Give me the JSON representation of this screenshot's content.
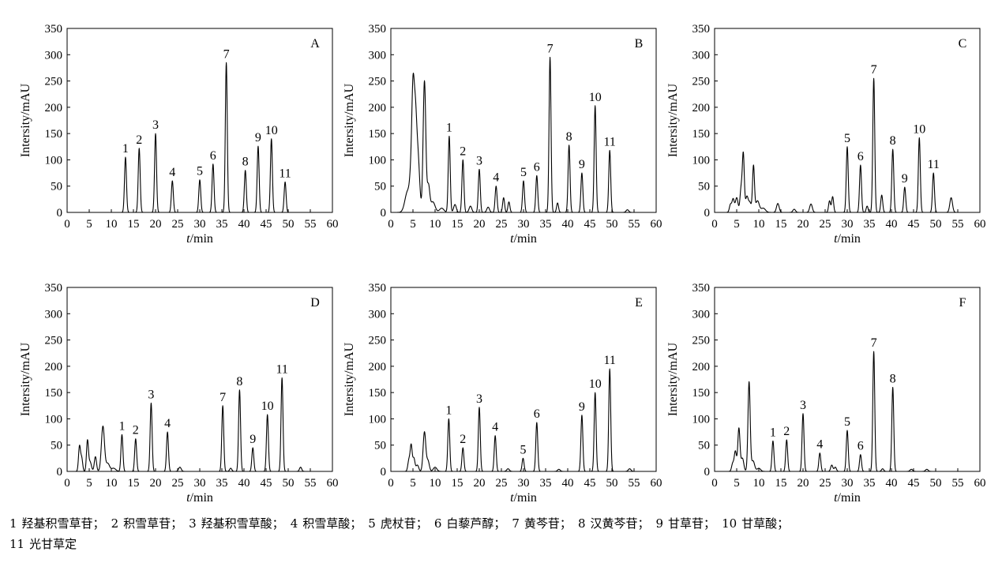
{
  "panels_common": {
    "ylabel": "Intersity/mAU",
    "xlabel_italic": "t",
    "xlabel_unit": "/min",
    "yticks": [
      "0",
      "50",
      "100",
      "150",
      "200",
      "250",
      "300",
      "350"
    ],
    "xticks": [
      "0",
      "5",
      "10",
      "15",
      "20",
      "25",
      "30",
      "35",
      "40",
      "45",
      "50",
      "55",
      "60"
    ]
  },
  "chart_data": [
    {
      "type": "line",
      "panel_label": "A",
      "xlabel": "t/min",
      "ylabel": "Intersity/mAU",
      "xlim": [
        0,
        60
      ],
      "ylim": [
        0,
        350
      ],
      "baseline": 0,
      "peaks": [
        {
          "x": 13.2,
          "y": 105,
          "w": 0.22,
          "label": "1"
        },
        {
          "x": 16.3,
          "y": 122,
          "w": 0.22,
          "label": "2"
        },
        {
          "x": 20.0,
          "y": 150,
          "w": 0.22,
          "label": "3"
        },
        {
          "x": 23.8,
          "y": 60,
          "w": 0.22,
          "label": "4"
        },
        {
          "x": 30.0,
          "y": 62,
          "w": 0.22,
          "label": "5"
        },
        {
          "x": 33.0,
          "y": 92,
          "w": 0.22,
          "label": "6"
        },
        {
          "x": 36.0,
          "y": 285,
          "w": 0.22,
          "label": "7"
        },
        {
          "x": 40.3,
          "y": 80,
          "w": 0.22,
          "label": "8"
        },
        {
          "x": 43.2,
          "y": 126,
          "w": 0.22,
          "label": "9"
        },
        {
          "x": 46.2,
          "y": 140,
          "w": 0.22,
          "label": "10"
        },
        {
          "x": 49.3,
          "y": 58,
          "w": 0.22,
          "label": "11"
        }
      ]
    },
    {
      "type": "line",
      "panel_label": "B",
      "xlabel": "t/min",
      "ylabel": "Intersity/mAU",
      "xlim": [
        0,
        60
      ],
      "ylim": [
        0,
        350
      ],
      "baseline": 0,
      "peaks": [
        {
          "x": 3.8,
          "y": 40,
          "w": 0.6
        },
        {
          "x": 4.7,
          "y": 80,
          "w": 0.35
        },
        {
          "x": 5.0,
          "y": 130,
          "w": 0.25
        },
        {
          "x": 5.5,
          "y": 190,
          "w": 0.35
        },
        {
          "x": 6.2,
          "y": 90,
          "w": 0.35
        },
        {
          "x": 7.6,
          "y": 250,
          "w": 0.3
        },
        {
          "x": 8.5,
          "y": 50,
          "w": 0.3
        },
        {
          "x": 9.5,
          "y": 20,
          "w": 0.5
        },
        {
          "x": 11.5,
          "y": 8,
          "w": 0.5
        },
        {
          "x": 13.2,
          "y": 145,
          "w": 0.22,
          "label": "1"
        },
        {
          "x": 14.5,
          "y": 15,
          "w": 0.3
        },
        {
          "x": 16.3,
          "y": 100,
          "w": 0.22,
          "label": "2"
        },
        {
          "x": 18.0,
          "y": 12,
          "w": 0.3
        },
        {
          "x": 20.0,
          "y": 82,
          "w": 0.22,
          "label": "3"
        },
        {
          "x": 22.0,
          "y": 10,
          "w": 0.3
        },
        {
          "x": 23.8,
          "y": 50,
          "w": 0.22,
          "label": "4"
        },
        {
          "x": 25.5,
          "y": 28,
          "w": 0.22
        },
        {
          "x": 26.7,
          "y": 20,
          "w": 0.22
        },
        {
          "x": 30.0,
          "y": 60,
          "w": 0.22,
          "label": "5"
        },
        {
          "x": 33.0,
          "y": 70,
          "w": 0.22,
          "label": "6"
        },
        {
          "x": 36.0,
          "y": 295,
          "w": 0.22,
          "label": "7"
        },
        {
          "x": 37.7,
          "y": 18,
          "w": 0.22
        },
        {
          "x": 40.3,
          "y": 128,
          "w": 0.22,
          "label": "8"
        },
        {
          "x": 43.2,
          "y": 75,
          "w": 0.22,
          "label": "9"
        },
        {
          "x": 46.2,
          "y": 203,
          "w": 0.22,
          "label": "10"
        },
        {
          "x": 49.5,
          "y": 118,
          "w": 0.22,
          "label": "11"
        },
        {
          "x": 53.5,
          "y": 5,
          "w": 0.3
        }
      ]
    },
    {
      "type": "line",
      "panel_label": "C",
      "xlabel": "t/min",
      "ylabel": "Intersity/mAU",
      "xlim": [
        0,
        60
      ],
      "ylim": [
        0,
        350
      ],
      "baseline": 0,
      "peaks": [
        {
          "x": 3.6,
          "y": 15,
          "w": 0.25
        },
        {
          "x": 4.2,
          "y": 25,
          "w": 0.25
        },
        {
          "x": 5.0,
          "y": 28,
          "w": 0.3
        },
        {
          "x": 6.0,
          "y": 45,
          "w": 0.25
        },
        {
          "x": 6.5,
          "y": 108,
          "w": 0.22
        },
        {
          "x": 7.3,
          "y": 30,
          "w": 0.3
        },
        {
          "x": 8.0,
          "y": 18,
          "w": 0.3
        },
        {
          "x": 8.8,
          "y": 88,
          "w": 0.22
        },
        {
          "x": 9.7,
          "y": 22,
          "w": 0.4
        },
        {
          "x": 11.0,
          "y": 8,
          "w": 0.5
        },
        {
          "x": 14.3,
          "y": 17,
          "w": 0.3
        },
        {
          "x": 18.0,
          "y": 6,
          "w": 0.3
        },
        {
          "x": 21.8,
          "y": 16,
          "w": 0.3
        },
        {
          "x": 26.0,
          "y": 22,
          "w": 0.22
        },
        {
          "x": 26.7,
          "y": 30,
          "w": 0.22
        },
        {
          "x": 30.0,
          "y": 125,
          "w": 0.22,
          "label": "5"
        },
        {
          "x": 33.0,
          "y": 90,
          "w": 0.22,
          "label": "6"
        },
        {
          "x": 34.5,
          "y": 12,
          "w": 0.22
        },
        {
          "x": 36.0,
          "y": 255,
          "w": 0.22,
          "label": "7"
        },
        {
          "x": 37.8,
          "y": 33,
          "w": 0.22
        },
        {
          "x": 40.3,
          "y": 120,
          "w": 0.22,
          "label": "8"
        },
        {
          "x": 43.0,
          "y": 48,
          "w": 0.22,
          "label": "9"
        },
        {
          "x": 46.3,
          "y": 142,
          "w": 0.22,
          "label": "10"
        },
        {
          "x": 49.5,
          "y": 75,
          "w": 0.22,
          "label": "11"
        },
        {
          "x": 53.5,
          "y": 28,
          "w": 0.3
        }
      ]
    },
    {
      "type": "line",
      "panel_label": "D",
      "xlabel": "t/min",
      "ylabel": "Intersity/mAU",
      "xlim": [
        0,
        60
      ],
      "ylim": [
        0,
        350
      ],
      "baseline": 0,
      "peaks": [
        {
          "x": 2.8,
          "y": 48,
          "w": 0.22
        },
        {
          "x": 3.3,
          "y": 25,
          "w": 0.22
        },
        {
          "x": 4.6,
          "y": 58,
          "w": 0.22
        },
        {
          "x": 5.2,
          "y": 18,
          "w": 0.3
        },
        {
          "x": 6.4,
          "y": 28,
          "w": 0.25
        },
        {
          "x": 8.1,
          "y": 86,
          "w": 0.35
        },
        {
          "x": 9.2,
          "y": 15,
          "w": 0.4
        },
        {
          "x": 10.5,
          "y": 6,
          "w": 0.5
        },
        {
          "x": 12.4,
          "y": 70,
          "w": 0.22,
          "label": "1"
        },
        {
          "x": 15.5,
          "y": 62,
          "w": 0.22,
          "label": "2"
        },
        {
          "x": 19.0,
          "y": 130,
          "w": 0.22,
          "label": "3"
        },
        {
          "x": 22.7,
          "y": 75,
          "w": 0.22,
          "label": "4"
        },
        {
          "x": 25.5,
          "y": 8,
          "w": 0.3
        },
        {
          "x": 35.2,
          "y": 125,
          "w": 0.22,
          "label": "7"
        },
        {
          "x": 37.0,
          "y": 6,
          "w": 0.25
        },
        {
          "x": 39.0,
          "y": 155,
          "w": 0.22,
          "label": "8"
        },
        {
          "x": 42.0,
          "y": 45,
          "w": 0.22,
          "label": "9"
        },
        {
          "x": 45.3,
          "y": 108,
          "w": 0.22,
          "label": "10"
        },
        {
          "x": 48.6,
          "y": 178,
          "w": 0.22,
          "label": "11"
        },
        {
          "x": 52.8,
          "y": 8,
          "w": 0.25
        }
      ]
    },
    {
      "type": "line",
      "panel_label": "E",
      "xlabel": "t/min",
      "ylabel": "Intersity/mAU",
      "xlim": [
        0,
        60
      ],
      "ylim": [
        0,
        350
      ],
      "baseline": 0,
      "peaks": [
        {
          "x": 4.1,
          "y": 22,
          "w": 0.25
        },
        {
          "x": 4.6,
          "y": 48,
          "w": 0.22
        },
        {
          "x": 5.2,
          "y": 25,
          "w": 0.25
        },
        {
          "x": 6.0,
          "y": 12,
          "w": 0.3
        },
        {
          "x": 7.6,
          "y": 75,
          "w": 0.3
        },
        {
          "x": 8.4,
          "y": 20,
          "w": 0.3
        },
        {
          "x": 10.0,
          "y": 8,
          "w": 0.4
        },
        {
          "x": 13.1,
          "y": 100,
          "w": 0.22,
          "label": "1"
        },
        {
          "x": 16.3,
          "y": 45,
          "w": 0.22,
          "label": "2"
        },
        {
          "x": 20.0,
          "y": 122,
          "w": 0.22,
          "label": "3"
        },
        {
          "x": 23.6,
          "y": 68,
          "w": 0.22,
          "label": "4"
        },
        {
          "x": 26.5,
          "y": 5,
          "w": 0.3
        },
        {
          "x": 29.9,
          "y": 25,
          "w": 0.22,
          "label": "5"
        },
        {
          "x": 33.0,
          "y": 93,
          "w": 0.22,
          "label": "6"
        },
        {
          "x": 38.0,
          "y": 4,
          "w": 0.3
        },
        {
          "x": 43.2,
          "y": 107,
          "w": 0.22,
          "label": "9"
        },
        {
          "x": 46.2,
          "y": 150,
          "w": 0.22,
          "label": "10"
        },
        {
          "x": 49.5,
          "y": 195,
          "w": 0.22,
          "label": "11"
        },
        {
          "x": 54.0,
          "y": 5,
          "w": 0.3
        }
      ]
    },
    {
      "type": "line",
      "panel_label": "F",
      "xlabel": "t/min",
      "ylabel": "Intersity/mAU",
      "xlim": [
        0,
        60
      ],
      "ylim": [
        0,
        350
      ],
      "baseline": 0,
      "peaks": [
        {
          "x": 4.1,
          "y": 15,
          "w": 0.25
        },
        {
          "x": 4.7,
          "y": 38,
          "w": 0.25
        },
        {
          "x": 5.5,
          "y": 82,
          "w": 0.25
        },
        {
          "x": 6.3,
          "y": 25,
          "w": 0.3
        },
        {
          "x": 7.8,
          "y": 170,
          "w": 0.25
        },
        {
          "x": 8.7,
          "y": 20,
          "w": 0.35
        },
        {
          "x": 10.0,
          "y": 6,
          "w": 0.4
        },
        {
          "x": 13.2,
          "y": 58,
          "w": 0.22,
          "label": "1"
        },
        {
          "x": 16.3,
          "y": 60,
          "w": 0.22,
          "label": "2"
        },
        {
          "x": 20.0,
          "y": 110,
          "w": 0.22,
          "label": "3"
        },
        {
          "x": 23.8,
          "y": 35,
          "w": 0.22,
          "label": "4"
        },
        {
          "x": 26.5,
          "y": 12,
          "w": 0.25
        },
        {
          "x": 27.3,
          "y": 8,
          "w": 0.25
        },
        {
          "x": 30.0,
          "y": 78,
          "w": 0.22,
          "label": "5"
        },
        {
          "x": 33.0,
          "y": 32,
          "w": 0.22,
          "label": "6"
        },
        {
          "x": 36.0,
          "y": 228,
          "w": 0.22,
          "label": "7"
        },
        {
          "x": 38.0,
          "y": 5,
          "w": 0.25
        },
        {
          "x": 40.3,
          "y": 160,
          "w": 0.22,
          "label": "8"
        },
        {
          "x": 44.5,
          "y": 4,
          "w": 0.3
        },
        {
          "x": 48.0,
          "y": 4,
          "w": 0.3
        }
      ]
    }
  ],
  "legend": {
    "items": [
      {
        "num": "1",
        "name": "羟基积雪草苷；"
      },
      {
        "num": "2",
        "name": "积雪草苷；"
      },
      {
        "num": "3",
        "name": "羟基积雪草酸；"
      },
      {
        "num": "4",
        "name": "积雪草酸；"
      },
      {
        "num": "5",
        "name": "虎杖苷；"
      },
      {
        "num": "6",
        "name": "白藜芦醇；"
      },
      {
        "num": "7",
        "name": "黄芩苷；"
      },
      {
        "num": "8",
        "name": "汉黄芩苷；"
      },
      {
        "num": "9",
        "name": "甘草苷；"
      },
      {
        "num": "10",
        "name": "甘草酸；"
      }
    ],
    "last_item": {
      "num": "11",
      "name": "光甘草定"
    }
  }
}
